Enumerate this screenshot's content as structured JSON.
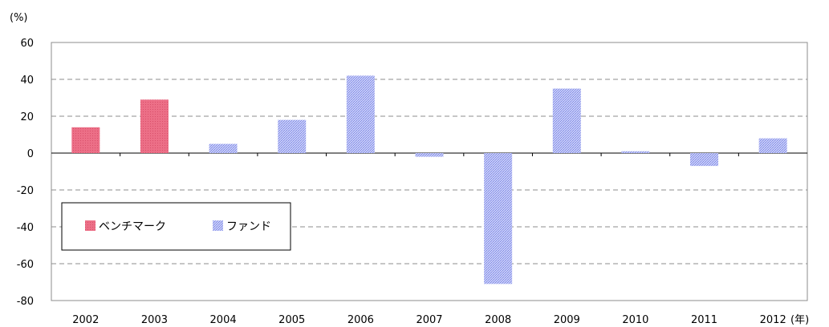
{
  "chart_data": {
    "type": "bar",
    "categories": [
      "2002",
      "2003",
      "2004",
      "2005",
      "2006",
      "2007",
      "2008",
      "2009",
      "2010",
      "2011",
      "2012"
    ],
    "y_unit": "(%)",
    "x_unit": "(年)",
    "ylim": [
      -80,
      60
    ],
    "yticks": [
      60,
      40,
      20,
      0,
      -20,
      -40,
      -60,
      -80
    ],
    "grid": true,
    "legend_position": "left",
    "series": [
      {
        "name": "ベンチマーク",
        "color": "#e8607a",
        "values": [
          14,
          29,
          null,
          null,
          null,
          null,
          null,
          null,
          null,
          null,
          null
        ]
      },
      {
        "name": "ファンド",
        "color": "#9fa8f0",
        "values": [
          null,
          null,
          5,
          18,
          42,
          -2,
          -71,
          35,
          1,
          -7,
          8
        ]
      }
    ]
  }
}
